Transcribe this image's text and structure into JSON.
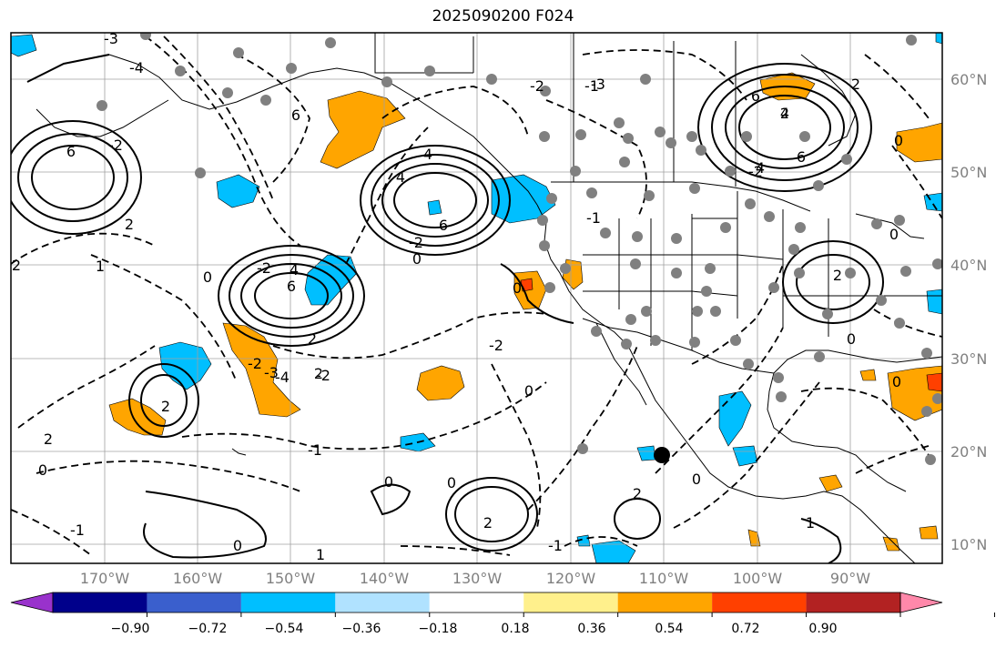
{
  "title": "2025090200 F024",
  "lat_labels": [
    "60°N",
    "50°N",
    "40°N",
    "30°N",
    "20°N",
    "10°N"
  ],
  "lon_labels": [
    "170°W",
    "160°W",
    "150°W",
    "140°W",
    "130°W",
    "120°W",
    "110°W",
    "100°W",
    "90°W"
  ],
  "colorbar": {
    "tick_labels": [
      "−0.90",
      "−0.72",
      "−0.54",
      "−0.36",
      "−0.18",
      "0.18",
      "0.36",
      "0.54",
      "0.72",
      "0.90"
    ],
    "colors": [
      "#9932cc",
      "#00008b",
      "#3a5fcd",
      "#00bfff",
      "#b0e2ff",
      "#ffffff",
      "#fff08c",
      "#ffa500",
      "#ff4000",
      "#b22222",
      "#ff88aa"
    ]
  },
  "contour_labels": [
    "6",
    "-2",
    "2",
    "-3",
    "-4",
    "6",
    "4",
    "2",
    "6",
    "-2",
    "4",
    "-2",
    "-2",
    "-3",
    "-4",
    "2",
    "4",
    "6",
    "-2",
    "2",
    "0",
    "6",
    "4",
    "-1",
    "0",
    "-2",
    "2",
    "-1",
    "0",
    "-3",
    "2",
    "4",
    "6",
    "2",
    "0",
    "2",
    "-2",
    "-2",
    "0",
    "2",
    "0",
    "2",
    "0",
    "0",
    "-1",
    "0",
    "-1",
    "0",
    "1",
    "2",
    "0",
    "1",
    "0",
    "1",
    "0",
    "-1"
  ]
}
